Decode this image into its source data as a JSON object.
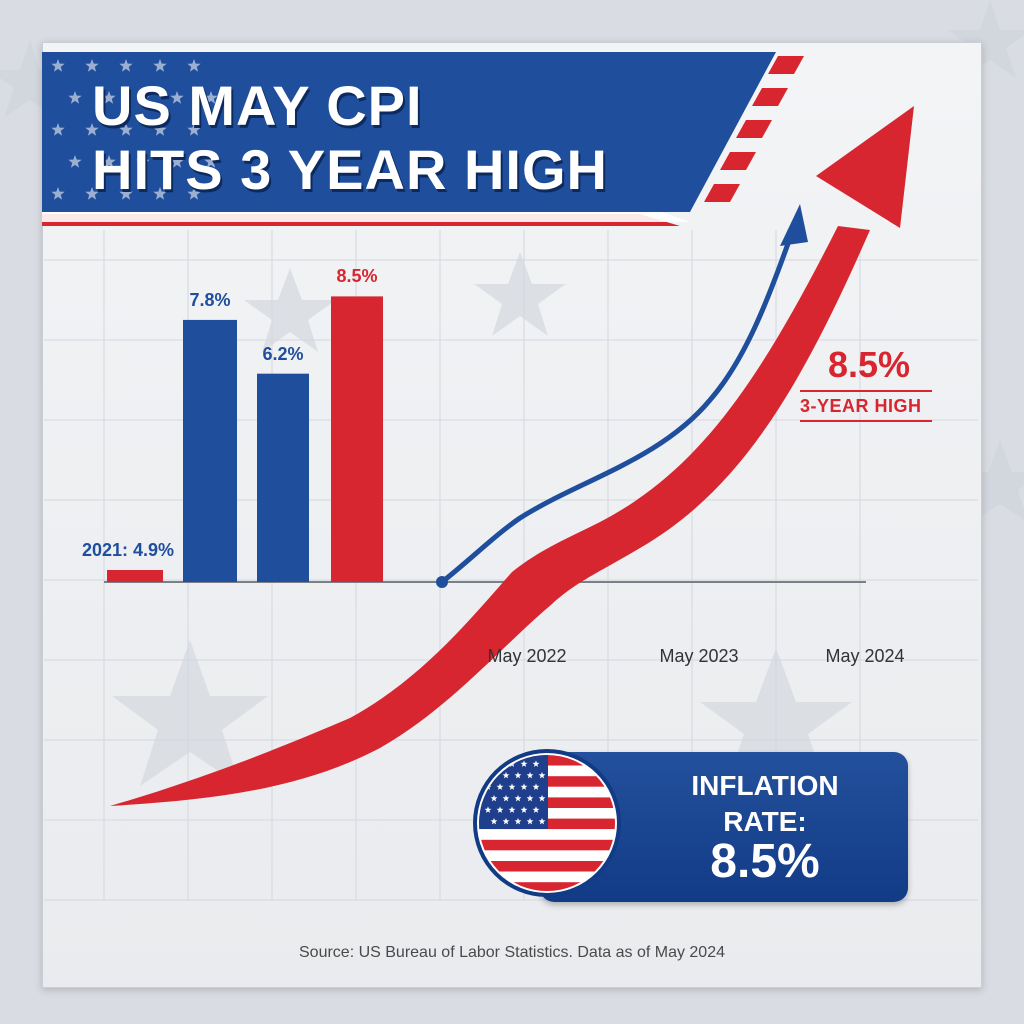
{
  "title": {
    "line1": "US MAY CPI",
    "line2": "HITS 3 YEAR HIGH"
  },
  "chart_data": {
    "type": "bar",
    "bars": [
      {
        "label": "2021: 4.9%",
        "value": 4.9,
        "color": "#d72630"
      },
      {
        "label": "7.8%",
        "value": 7.8,
        "color": "#1f4e9c"
      },
      {
        "label": "6.2%",
        "value": 6.2,
        "color": "#1f4e9c"
      },
      {
        "label": "8.5%",
        "value": 8.5,
        "color": "#d72630"
      }
    ],
    "x_labels": [
      "May 2022",
      "May 2023",
      "May 2024"
    ],
    "highlight": {
      "value": "8.5%",
      "label": "3-YEAR HIGH"
    },
    "trend_arrows": [
      "red",
      "blue"
    ]
  },
  "info_box": {
    "label_line1": "INFLATION",
    "label_line2": "RATE:",
    "value": "8.5%"
  },
  "source": "Source: US Bureau of Labor Statistics. Data as of May 2024",
  "colors": {
    "red": "#d72630",
    "blue": "#1f4e9c",
    "navy": "#123b86",
    "background": "#e9ebee"
  }
}
